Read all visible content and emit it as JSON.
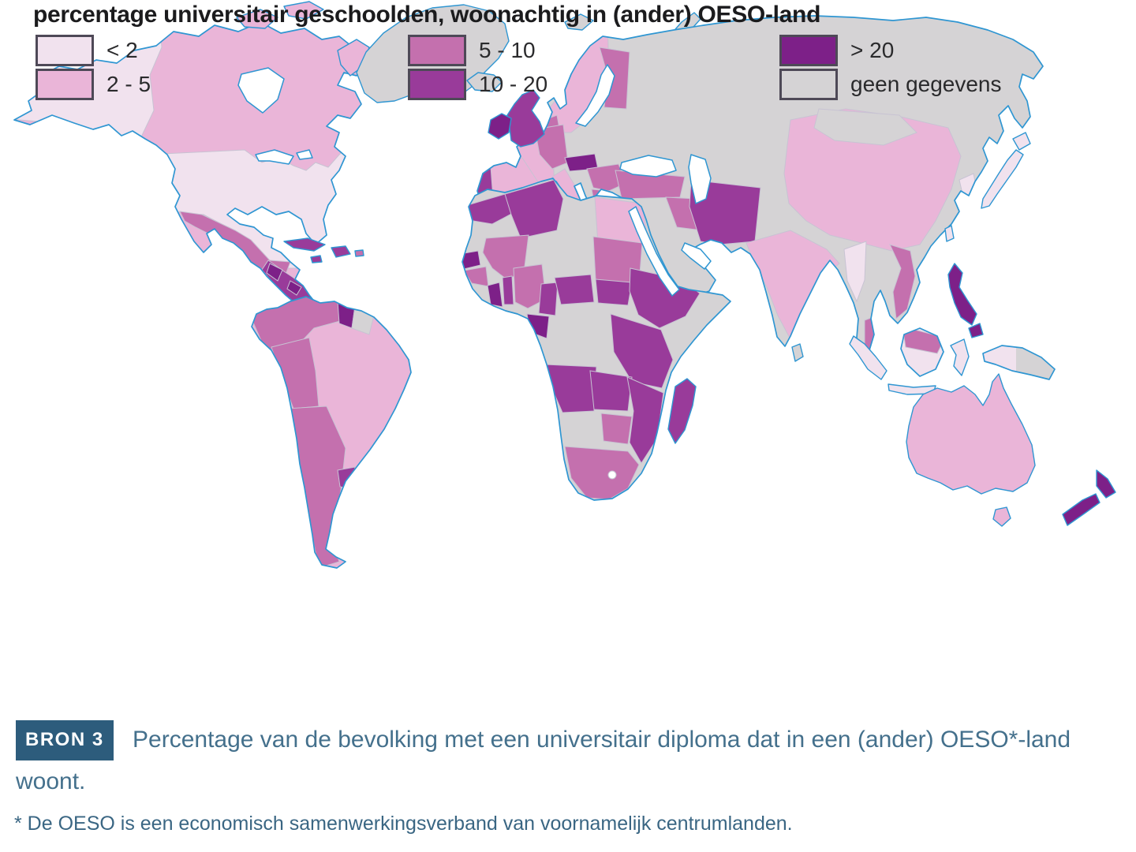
{
  "legend": {
    "title": "percentage universitair geschoolden, woonachtig in (ander) OESO-land",
    "items": [
      {
        "key": "lt2",
        "label": "< 2",
        "color": "#f1e2ee"
      },
      {
        "key": "r2_5",
        "label": "2 - 5",
        "color": "#eab5d8"
      },
      {
        "key": "r5_10",
        "label": "5 - 10",
        "color": "#c470ae"
      },
      {
        "key": "r10_20",
        "label": "10 - 20",
        "color": "#993b9a"
      },
      {
        "key": "gt20",
        "label": "> 20",
        "color": "#7d2088"
      },
      {
        "key": "nodata",
        "label": "geen gegevens",
        "color": "#d5d3d5"
      }
    ]
  },
  "caption": {
    "badge": "BRON 3",
    "text": "Percentage van de bevolking met een universitair diploma dat in een (ander) OESO*-land woont.",
    "footnote": "* De OESO is een economisch samenwerkingsverband van voornamelijk centrumlanden."
  },
  "map": {
    "coastline_color": "#2f96d2",
    "border_color": "#c8c3d3",
    "ocean_color": "#ffffff",
    "regions": {
      "canada_base": "r2_5",
      "alaska": "lt2",
      "usa": "lt2",
      "mexico": "r5_10",
      "central_america": "r10_20",
      "guatemala": "gt20",
      "nicaragua": "gt20",
      "cuba": "r10_20",
      "hispaniola": "r10_20",
      "jamaica": "r10_20",
      "puerto_rico": "r5_10",
      "greenland": "nodata",
      "iceland": "nodata",
      "baffin_island": "r2_5",
      "victoria_island": "r2_5",
      "ellesmere_island": "r2_5",
      "svalbard": "nodata",
      "novaya_zemlya": "nodata",
      "brazil_base": "r2_5",
      "colombia_venezuela": "r5_10",
      "peru": "r5_10",
      "guyana": "gt20",
      "suriname": "nodata",
      "argentina_chile": "r5_10",
      "uruguay": "r10_20",
      "russia_centralasia_base": "nodata",
      "scandinavia": "r2_5",
      "finland": "r5_10",
      "denmark": "r5_10",
      "france": "r2_5",
      "iberia": "r2_5",
      "portugal": "r10_20",
      "germany": "r5_10",
      "austria_hungary": "gt20",
      "italy": "r2_5",
      "balkans": "r5_10",
      "greece": "r5_10",
      "turkey": "r5_10",
      "iraq": "r5_10",
      "iran": "r10_20",
      "india": "r2_5",
      "china": "r2_5",
      "mongolia": "nodata",
      "south_korea": "lt2",
      "myanmar": "lt2",
      "vietnam": "r5_10",
      "malaysia": "r5_10",
      "uk": "r10_20",
      "ireland": "gt20",
      "japan": "lt2",
      "hokkaido": "lt2",
      "taiwan": "lt2",
      "sri_lanka": "nodata",
      "sardinia": "r2_5",
      "sicily": "r2_5",
      "africa_base": "nodata",
      "morocco": "r10_20",
      "algeria": "r10_20",
      "egypt": "r2_5",
      "mali": "r5_10",
      "senegal": "gt20",
      "guinea": "r5_10",
      "ghana": "gt20",
      "benin": "r10_20",
      "nigeria": "r5_10",
      "cameroon": "r10_20",
      "gabon": "gt20",
      "central_african_rep": "r10_20",
      "sudan": "r5_10",
      "south_sudan": "r10_20",
      "ethiopia": "r10_20",
      "kenya_tanzania": "r10_20",
      "angola": "r10_20",
      "zambia": "r10_20",
      "mozambique": "r10_20",
      "zimbabwe": "r5_10",
      "south_africa": "r5_10",
      "madagascar": "r10_20",
      "philippines": "gt20",
      "philippines_south": "gt20",
      "sumatra": "lt2",
      "java": "lt2",
      "borneo_base": "lt2",
      "malaysia_borneo": "r5_10",
      "sulawesi": "lt2",
      "new_guinea_west": "lt2",
      "new_guinea_east": "nodata",
      "lesser_sunda_1": "lt2",
      "lesser_sunda_2": "lt2",
      "australia": "r2_5",
      "tasmania": "r2_5",
      "nz_north": "gt20",
      "nz_south": "gt20"
    }
  }
}
